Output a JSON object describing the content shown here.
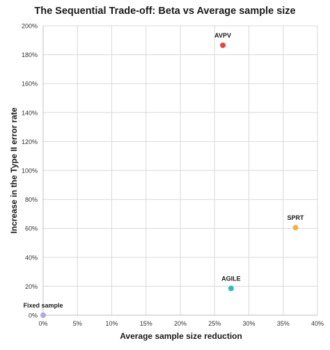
{
  "chart_data": {
    "type": "scatter",
    "title": "The Sequential Trade-off: Beta vs Average sample size",
    "xlabel": "Average sample size reduction",
    "ylabel": "Increase in the Type II error rate",
    "xlim": [
      0,
      40
    ],
    "ylim": [
      0,
      200
    ],
    "x_ticks": [
      "0%",
      "5%",
      "10%",
      "15%",
      "20%",
      "25%",
      "30%",
      "35%",
      "40%"
    ],
    "y_ticks": [
      "0%",
      "20%",
      "40%",
      "60%",
      "80%",
      "100%",
      "120%",
      "140%",
      "160%",
      "180%",
      "200%"
    ],
    "x_tick_values": [
      0,
      5,
      10,
      15,
      20,
      25,
      30,
      35,
      40
    ],
    "y_tick_values": [
      0,
      20,
      40,
      60,
      80,
      100,
      120,
      140,
      160,
      180,
      200
    ],
    "grid": true,
    "points": [
      {
        "label": "Fixed sample",
        "x": 0,
        "y": 0,
        "color": "#b4a7e6"
      },
      {
        "label": "AVPV",
        "x": 26.2,
        "y": 186.5,
        "color": "#e8463a"
      },
      {
        "label": "SPRT",
        "x": 36.8,
        "y": 60.5,
        "color": "#f6b142"
      },
      {
        "label": "AGILE",
        "x": 27.4,
        "y": 18.5,
        "color": "#2bbdbd"
      }
    ]
  }
}
